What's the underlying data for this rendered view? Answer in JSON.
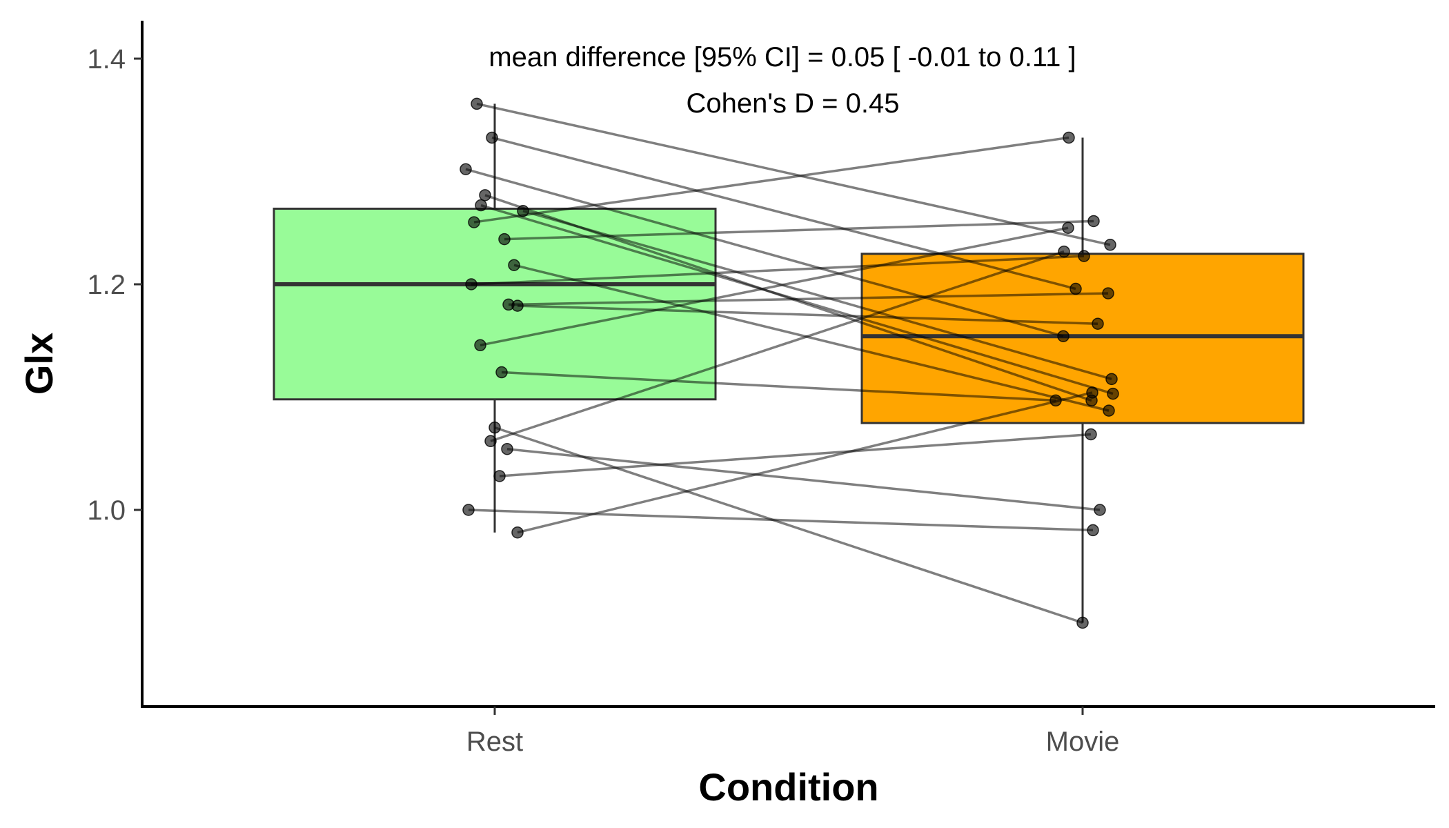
{
  "chart_data": {
    "type": "box",
    "xlabel": "Condition",
    "ylabel": "Glx",
    "ylim": [
      0.835,
      1.435
    ],
    "y_ticks": [
      {
        "value": 1.0,
        "label": "1.0"
      },
      {
        "value": 1.2,
        "label": "1.2"
      },
      {
        "value": 1.4,
        "label": "1.4"
      }
    ],
    "grid": false,
    "categories": [
      "Rest",
      "Movie"
    ],
    "boxes": [
      {
        "category": "Rest",
        "fill": "#98fb98",
        "q1": 1.098,
        "median": 1.2,
        "q3": 1.267,
        "whisker_low": 0.98,
        "whisker_high": 1.36
      },
      {
        "category": "Movie",
        "fill": "#ffa500",
        "q1": 1.077,
        "median": 1.154,
        "q3": 1.227,
        "whisker_low": 0.9,
        "whisker_high": 1.33
      }
    ],
    "paired_points": [
      {
        "rest": 1.36,
        "movie": 1.235
      },
      {
        "rest": 1.33,
        "movie": 1.196
      },
      {
        "rest": 1.302,
        "movie": 1.154
      },
      {
        "rest": 1.279,
        "movie": 1.097
      },
      {
        "rest": 1.27,
        "movie": 1.103
      },
      {
        "rest": 1.265,
        "movie": 1.116
      },
      {
        "rest": 1.255,
        "movie": 1.33
      },
      {
        "rest": 1.24,
        "movie": 1.256
      },
      {
        "rest": 1.217,
        "movie": 1.088
      },
      {
        "rest": 1.2,
        "movie": 1.225
      },
      {
        "rest": 1.182,
        "movie": 1.192
      },
      {
        "rest": 1.181,
        "movie": 1.165
      },
      {
        "rest": 1.146,
        "movie": 1.25
      },
      {
        "rest": 1.122,
        "movie": 1.097
      },
      {
        "rest": 1.073,
        "movie": 0.9
      },
      {
        "rest": 1.061,
        "movie": 1.229
      },
      {
        "rest": 1.054,
        "movie": 1.0
      },
      {
        "rest": 1.03,
        "movie": 1.067
      },
      {
        "rest": 1.0,
        "movie": 0.982
      },
      {
        "rest": 0.98,
        "movie": 1.104
      }
    ],
    "annotations": [
      "mean difference [95% CI] =  0.05 [ -0.01  to  0.11 ]",
      "Cohen's D =  0.45"
    ]
  }
}
